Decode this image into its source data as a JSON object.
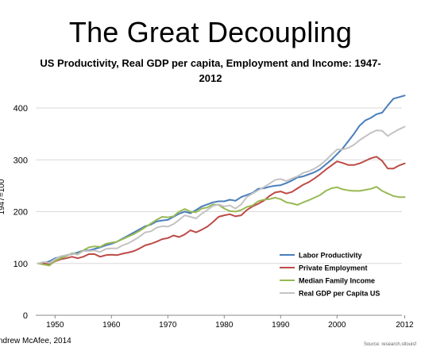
{
  "chart_data": {
    "type": "line",
    "title": "The Great Decoupling",
    "subtitle": "US Productivity, Real GDP per capita, Employment and Income: 1947-2012",
    "ylabel": "1947=100",
    "xlabel": "",
    "xlim": [
      1947,
      2012
    ],
    "ylim": [
      0,
      450
    ],
    "x_ticks": [
      "1950",
      "1960",
      "1970",
      "1980",
      "1990",
      "2000",
      "2012"
    ],
    "x_tick_values": [
      1950,
      1960,
      1970,
      1980,
      1990,
      2000,
      2012
    ],
    "y_ticks": [
      "0",
      "100",
      "200",
      "300",
      "400"
    ],
    "y_tick_values": [
      0,
      100,
      200,
      300,
      400
    ],
    "grid": "horizontal",
    "legend_position": "bottom-right",
    "series": [
      {
        "name": "Labor Productivity",
        "color": "#4a7ebb",
        "x": [
          1947,
          1948,
          1949,
          1950,
          1951,
          1952,
          1953,
          1954,
          1955,
          1956,
          1957,
          1958,
          1959,
          1960,
          1961,
          1962,
          1963,
          1964,
          1965,
          1966,
          1967,
          1968,
          1969,
          1970,
          1971,
          1972,
          1973,
          1974,
          1975,
          1976,
          1977,
          1978,
          1979,
          1980,
          1981,
          1982,
          1983,
          1984,
          1985,
          1986,
          1987,
          1988,
          1989,
          1990,
          1991,
          1992,
          1993,
          1994,
          1995,
          1996,
          1997,
          1998,
          1999,
          2000,
          2001,
          2002,
          2003,
          2004,
          2005,
          2006,
          2007,
          2008,
          2009,
          2010,
          2011,
          2012
        ],
        "values": [
          100,
          101,
          104,
          110,
          113,
          116,
          118,
          121,
          125,
          125,
          128,
          131,
          135,
          138,
          142,
          148,
          154,
          160,
          166,
          172,
          175,
          181,
          183,
          184,
          190,
          196,
          200,
          197,
          203,
          210,
          214,
          218,
          220,
          220,
          223,
          221,
          228,
          232,
          236,
          244,
          245,
          248,
          250,
          251,
          255,
          260,
          266,
          268,
          272,
          276,
          282,
          291,
          300,
          311,
          322,
          336,
          350,
          366,
          376,
          381,
          388,
          391,
          405,
          418,
          421,
          424
        ]
      },
      {
        "name": "Private Employment",
        "color": "#be4b48",
        "x": [
          1947,
          1948,
          1949,
          1950,
          1951,
          1952,
          1953,
          1954,
          1955,
          1956,
          1957,
          1958,
          1959,
          1960,
          1961,
          1962,
          1963,
          1964,
          1965,
          1966,
          1967,
          1968,
          1969,
          1970,
          1971,
          1972,
          1973,
          1974,
          1975,
          1976,
          1977,
          1978,
          1979,
          1980,
          1981,
          1982,
          1983,
          1984,
          1985,
          1986,
          1987,
          1988,
          1989,
          1990,
          1991,
          1992,
          1993,
          1994,
          1995,
          1996,
          1997,
          1998,
          1999,
          2000,
          2001,
          2002,
          2003,
          2004,
          2005,
          2006,
          2007,
          2008,
          2009,
          2010,
          2011,
          2012
        ],
        "values": [
          100,
          101,
          98,
          104,
          108,
          110,
          113,
          110,
          113,
          118,
          118,
          113,
          116,
          117,
          116,
          119,
          121,
          124,
          129,
          135,
          138,
          142,
          147,
          149,
          154,
          151,
          156,
          164,
          160,
          165,
          171,
          180,
          190,
          193,
          195,
          191,
          193,
          203,
          210,
          215,
          221,
          230,
          237,
          239,
          235,
          238,
          245,
          252,
          257,
          264,
          272,
          281,
          289,
          297,
          294,
          290,
          290,
          293,
          298,
          303,
          306,
          298,
          283,
          283,
          289,
          293
        ]
      },
      {
        "name": "Median Family Income",
        "color": "#98b954",
        "x": [
          1947,
          1948,
          1949,
          1950,
          1951,
          1952,
          1953,
          1954,
          1955,
          1956,
          1957,
          1958,
          1959,
          1960,
          1961,
          1962,
          1963,
          1964,
          1965,
          1966,
          1967,
          1968,
          1969,
          1970,
          1971,
          1972,
          1973,
          1974,
          1975,
          1976,
          1977,
          1978,
          1979,
          1980,
          1981,
          1982,
          1983,
          1984,
          1985,
          1986,
          1987,
          1988,
          1989,
          1990,
          1991,
          1992,
          1993,
          1994,
          1995,
          1996,
          1997,
          1998,
          1999,
          2000,
          2001,
          2002,
          2003,
          2004,
          2005,
          2006,
          2007,
          2008,
          2009,
          2010,
          2011,
          2012
        ],
        "values": [
          100,
          98,
          96,
          105,
          110,
          114,
          120,
          118,
          125,
          131,
          133,
          132,
          138,
          140,
          142,
          147,
          152,
          157,
          163,
          170,
          177,
          184,
          190,
          189,
          191,
          200,
          205,
          200,
          199,
          206,
          208,
          214,
          213,
          206,
          201,
          200,
          203,
          209,
          212,
          220,
          223,
          224,
          227,
          224,
          218,
          216,
          213,
          218,
          222,
          227,
          232,
          240,
          245,
          247,
          243,
          241,
          240,
          240,
          242,
          244,
          248,
          240,
          235,
          230,
          228,
          228
        ]
      },
      {
        "name": "Real GDP per Capita US",
        "color": "#c3c3c3",
        "x": [
          1947,
          1948,
          1949,
          1950,
          1951,
          1952,
          1953,
          1954,
          1955,
          1956,
          1957,
          1958,
          1959,
          1960,
          1961,
          1962,
          1963,
          1964,
          1965,
          1966,
          1967,
          1968,
          1969,
          1970,
          1971,
          1972,
          1973,
          1974,
          1975,
          1976,
          1977,
          1978,
          1979,
          1980,
          1981,
          1982,
          1983,
          1984,
          1985,
          1986,
          1987,
          1988,
          1989,
          1990,
          1991,
          1992,
          1993,
          1994,
          1995,
          1996,
          1997,
          1998,
          1999,
          2000,
          2001,
          2002,
          2003,
          2004,
          2005,
          2006,
          2007,
          2008,
          2009,
          2010,
          2011,
          2012
        ],
        "values": [
          100,
          103,
          101,
          108,
          114,
          116,
          119,
          117,
          124,
          124,
          125,
          122,
          128,
          129,
          129,
          135,
          139,
          145,
          152,
          160,
          162,
          169,
          172,
          171,
          176,
          184,
          193,
          190,
          187,
          196,
          203,
          211,
          214,
          210,
          212,
          206,
          214,
          228,
          235,
          241,
          247,
          254,
          261,
          263,
          259,
          264,
          268,
          275,
          278,
          283,
          290,
          299,
          310,
          320,
          320,
          323,
          329,
          338,
          345,
          352,
          357,
          356,
          346,
          353,
          359,
          364
        ]
      }
    ]
  },
  "credit": "ndrew McAfee, 2014",
  "source": "Source: research.stlouisf"
}
